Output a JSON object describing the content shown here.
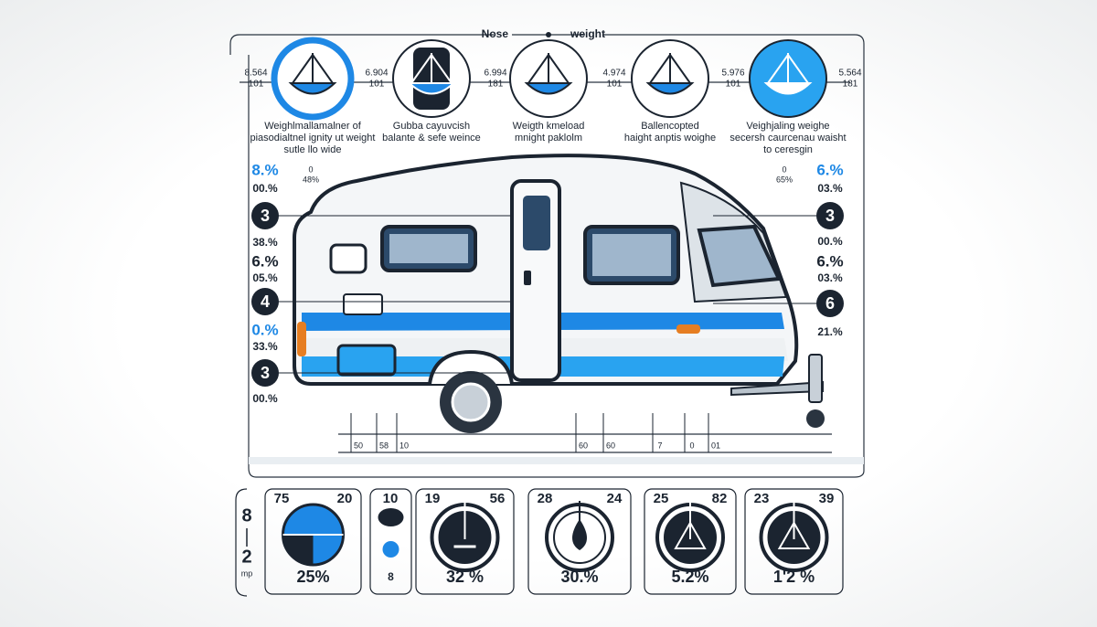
{
  "header": {
    "left": "Nose",
    "right": "weight"
  },
  "top_values": [
    {
      "top": "8.564",
      "bottom": "101"
    },
    {
      "top": "6.904",
      "bottom": "101"
    },
    {
      "top": "6.994",
      "bottom": "181"
    },
    {
      "top": "4.974",
      "bottom": "101"
    },
    {
      "top": "5.976",
      "bottom": "101"
    },
    {
      "top": "5.564",
      "bottom": "181"
    }
  ],
  "icons": [
    {
      "caption": [
        "Weighlmallamalner of",
        "piasodialtnel ignity ut weight",
        "sutle llo wide"
      ]
    },
    {
      "caption": [
        "Gubba cayuvcish",
        "balante & sefe weince"
      ]
    },
    {
      "caption": [
        "Weigth kmeload",
        "mnight paklolm"
      ]
    },
    {
      "caption": [
        "Ballencopted",
        "haight anptis woighe"
      ]
    },
    {
      "caption": [
        "Veighjaling weighe",
        "secersh caurcenau waisht",
        "to ceresgin"
      ]
    }
  ],
  "left_column": [
    "8.%",
    "00.%",
    "3",
    "38.%",
    "6.%",
    "05.%",
    "4",
    "0.%",
    "33.%",
    "3",
    "00.%"
  ],
  "right_column": [
    "6.%",
    "03.%",
    "3",
    "00.%",
    "6.%",
    "03.%",
    "6",
    "21.%"
  ],
  "side_notes": [
    {
      "top": "0",
      "bottom": "48%"
    },
    {
      "top": "0",
      "bottom": "65%"
    }
  ],
  "ruler_labels": [
    "50",
    "58",
    "10",
    "60",
    "60",
    "7",
    "0",
    "01"
  ],
  "bottom_scale": {
    "top": "8",
    "bottom": "2",
    "unit": "mp"
  },
  "panels": [
    {
      "left": "75",
      "right": "20",
      "value": "25%"
    },
    {
      "left": "10",
      "value": "8"
    },
    {
      "left": "19",
      "right": "56",
      "value": "32 %"
    },
    {
      "left": "28",
      "right": "24",
      "value": "30.%"
    },
    {
      "left": "25",
      "right": "82",
      "value": "5.2%"
    },
    {
      "left": "23",
      "right": "39",
      "value": "1'2 %"
    }
  ]
}
